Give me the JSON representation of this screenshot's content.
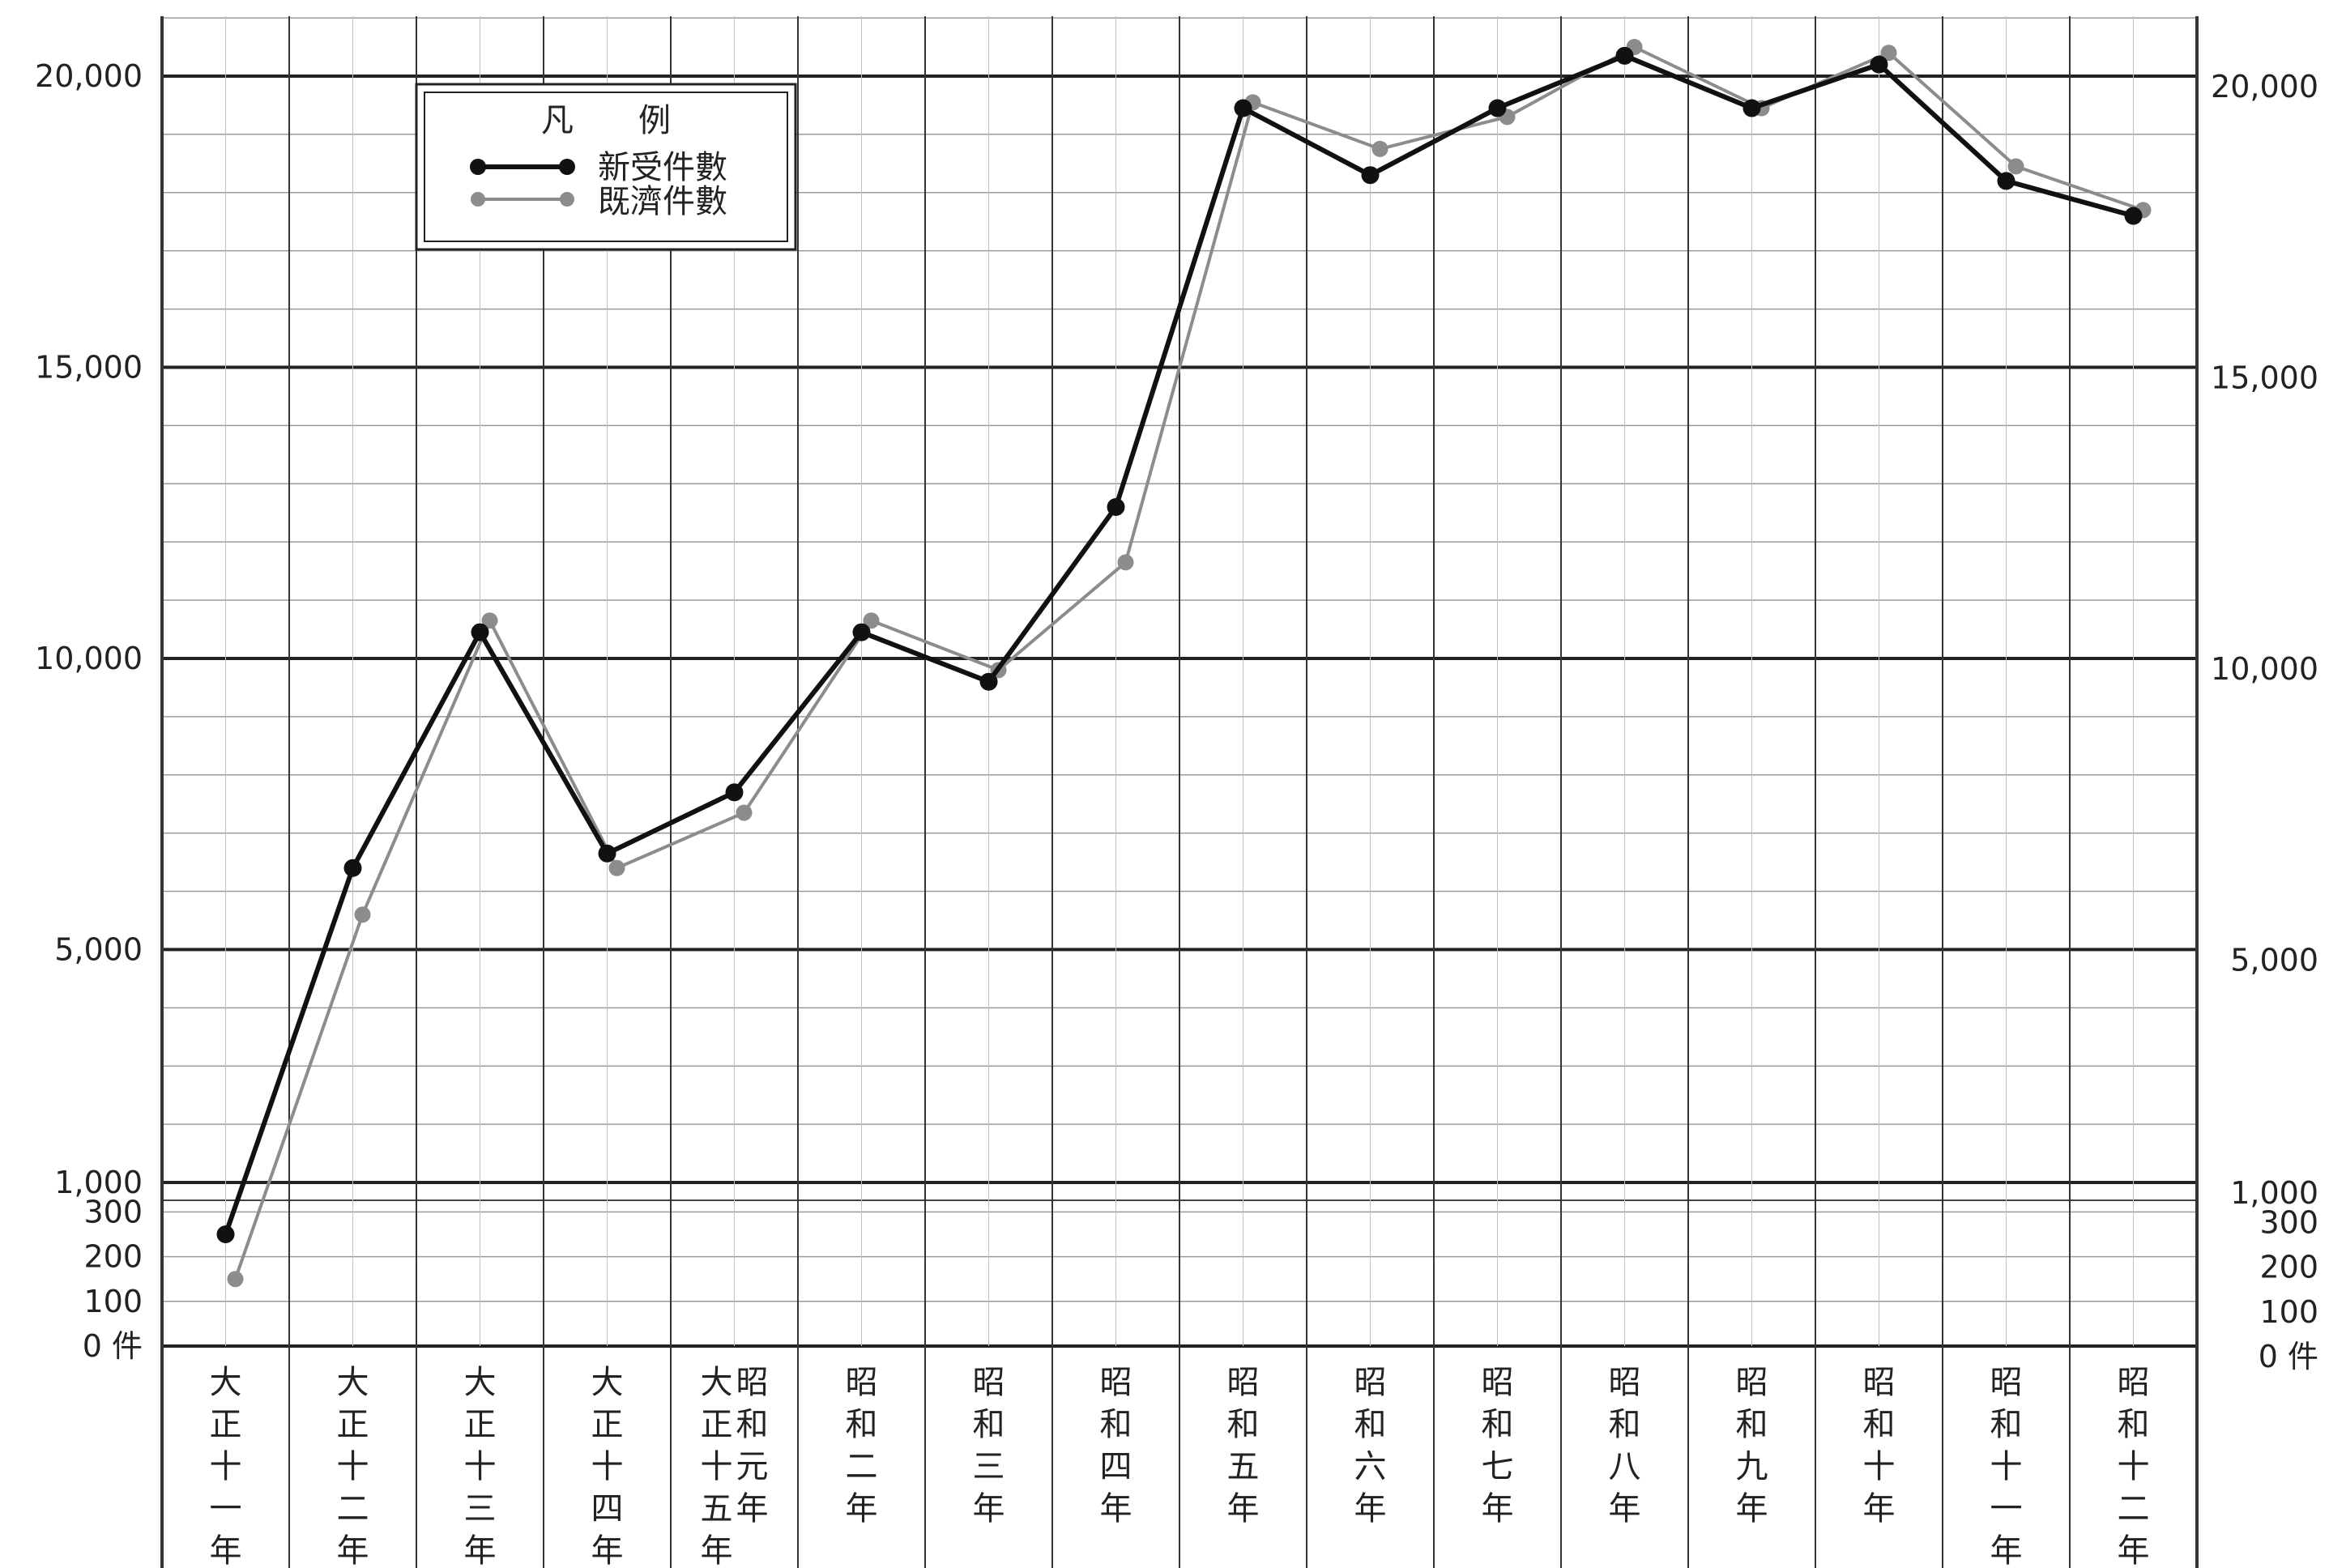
{
  "chart_data": {
    "type": "line",
    "categories": [
      "大正十一年",
      "大正十二年",
      "大正十三年",
      "大正十四年",
      "大正十五年 昭和元年",
      "昭和二年",
      "昭和三年",
      "昭和四年",
      "昭和五年",
      "昭和六年",
      "昭和七年",
      "昭和八年",
      "昭和九年",
      "昭和十年",
      "昭和十一年",
      "昭和十二年"
    ],
    "category_lines": [
      [
        [
          "大",
          "正",
          "十",
          "一",
          "年"
        ]
      ],
      [
        [
          "大",
          "正",
          "十",
          "二",
          "年"
        ]
      ],
      [
        [
          "大",
          "正",
          "十",
          "三",
          "年"
        ]
      ],
      [
        [
          "大",
          "正",
          "十",
          "四",
          "年"
        ]
      ],
      [
        [
          "大",
          "正",
          "十",
          "五",
          "年"
        ],
        [
          "昭",
          "和",
          "元",
          "年"
        ]
      ],
      [
        [
          "昭",
          "和",
          "二",
          "年"
        ]
      ],
      [
        [
          "昭",
          "和",
          "三",
          "年"
        ]
      ],
      [
        [
          "昭",
          "和",
          "四",
          "年"
        ]
      ],
      [
        [
          "昭",
          "和",
          "五",
          "年"
        ]
      ],
      [
        [
          "昭",
          "和",
          "六",
          "年"
        ]
      ],
      [
        [
          "昭",
          "和",
          "七",
          "年"
        ]
      ],
      [
        [
          "昭",
          "和",
          "八",
          "年"
        ]
      ],
      [
        [
          "昭",
          "和",
          "九",
          "年"
        ]
      ],
      [
        [
          "昭",
          "和",
          "十",
          "年"
        ]
      ],
      [
        [
          "昭",
          "和",
          "十",
          "一",
          "年"
        ]
      ],
      [
        [
          "昭",
          "和",
          "十",
          "二",
          "年"
        ]
      ]
    ],
    "series": [
      {
        "name": "新受件數",
        "color": "#111111",
        "values": [
          250,
          6400,
          10450,
          6650,
          7700,
          10450,
          9600,
          12600,
          19450,
          18300,
          19450,
          20350,
          19450,
          20200,
          18200,
          17600
        ]
      },
      {
        "name": "既濟件數",
        "color": "#8c8c8c",
        "values": [
          150,
          5600,
          10650,
          6400,
          7350,
          10650,
          9800,
          11650,
          19550,
          18750,
          19300,
          20500,
          19450,
          20400,
          18450,
          17700
        ]
      }
    ],
    "legend_title": "凡　　例",
    "legend_position": "top-left",
    "y_ticks_left": [
      "20,000",
      "15,000",
      "10,000",
      "5,000",
      "1,000",
      "300",
      "200",
      "100",
      "0 件"
    ],
    "y_ticks_right": [
      "20,000",
      "15,000",
      "10,000",
      "5,000",
      "1,000",
      "300",
      "200",
      "100",
      "0 件"
    ],
    "y_scale": "piecewise: 0–300 compressed lower band, 1,000–20,000 linear upper band",
    "ylim": [
      0,
      21000
    ],
    "grid": true
  }
}
